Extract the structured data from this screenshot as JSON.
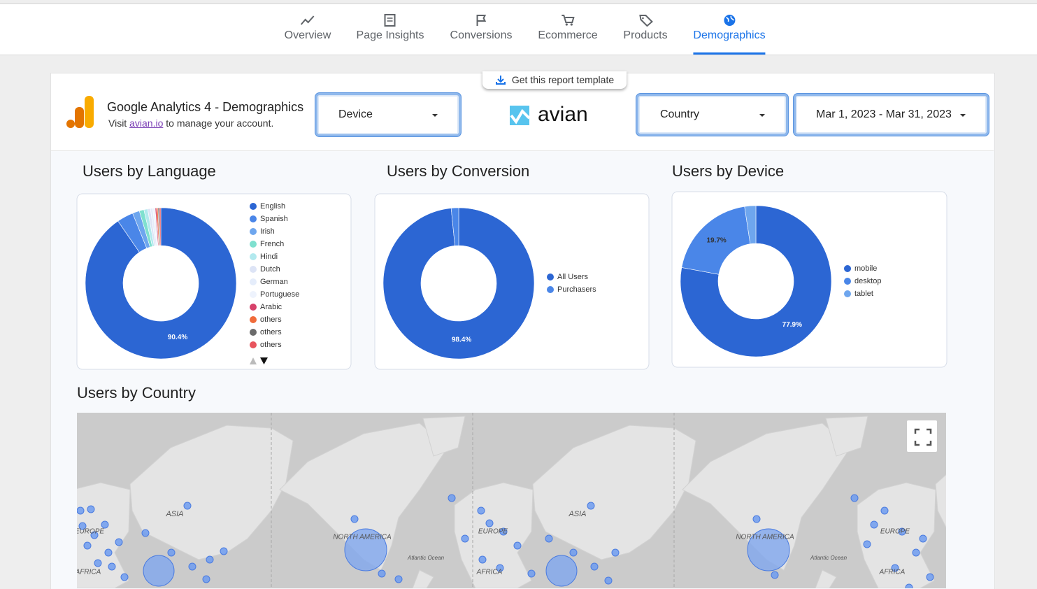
{
  "nav": {
    "tabs": [
      "Overview",
      "Page Insights",
      "Conversions",
      "Ecommerce",
      "Products",
      "Demographics"
    ],
    "active": 5
  },
  "header": {
    "template_button": "Get this report template",
    "title": "Google Analytics 4 - Demographics",
    "visit": "Visit",
    "link": "avian.io",
    "manage": "to manage your account.",
    "brand": "avian",
    "filters": [
      "Device",
      "Country",
      "Mar 1, 2023 - Mar 31, 2023"
    ]
  },
  "chart_data": [
    {
      "type": "donut",
      "title": "Users by Language",
      "categories": [
        "English",
        "Spanish",
        "Irish",
        "French",
        "Hindi",
        "Dutch",
        "German",
        "Portuguese",
        "Arabic",
        "others",
        "others",
        "others"
      ],
      "values": [
        90.4,
        3.5,
        1.5,
        1,
        0.8,
        0.6,
        0.5,
        0.5,
        0.3,
        0.3,
        0.3,
        0.3
      ],
      "value_labels": [
        "90.4%",
        null,
        null,
        null,
        null,
        null,
        null,
        null,
        null,
        null,
        null,
        null
      ],
      "colors": [
        "#2c66d3",
        "#4a86e8",
        "#6ea6ee",
        "#7fe0cf",
        "#b2e9ee",
        "#dde4f6",
        "#e5edfb",
        "#eef3fd",
        "#d6416a",
        "#f06b3a",
        "#6b6b6b",
        "#e8555e"
      ]
    },
    {
      "type": "donut",
      "title": "Users by Conversion",
      "categories": [
        "All Users",
        "Purchasers"
      ],
      "values": [
        98.4,
        1.6
      ],
      "value_labels": [
        "98.4%",
        null
      ],
      "colors": [
        "#2c66d3",
        "#4a86e8"
      ]
    },
    {
      "type": "donut",
      "title": "Users by Device",
      "categories": [
        "mobile",
        "desktop",
        "tablet"
      ],
      "values": [
        77.9,
        19.7,
        2.4
      ],
      "value_labels": [
        "77.9%",
        "19.7%",
        null
      ],
      "colors": [
        "#2c66d3",
        "#4a86e8",
        "#6ea6ee"
      ]
    }
  ],
  "map": {
    "title": "Users by Country",
    "labels": [
      "ASIA",
      "EUROPE",
      "AFRICA",
      "NORTH AMERICA",
      "Atlantic Ocean",
      "EUROPE",
      "AFRICA",
      "ASIA",
      "NORTH AMERICA",
      "Atlantic Ocean",
      "EUROPE",
      "AFRICA"
    ]
  }
}
